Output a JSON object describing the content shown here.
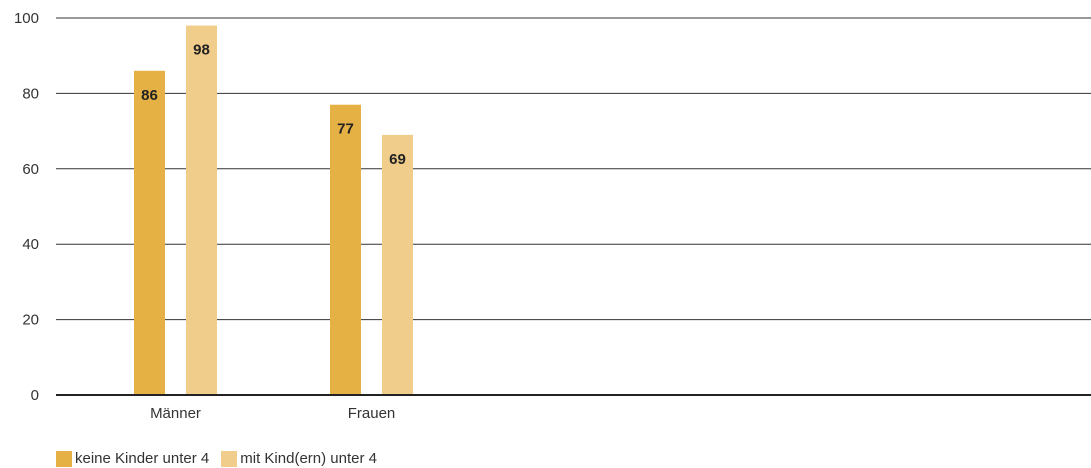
{
  "chart_data": {
    "type": "bar",
    "categories": [
      "Männer",
      "Frauen"
    ],
    "series": [
      {
        "name": "keine Kinder unter 4",
        "values": [
          86,
          77
        ],
        "color": "#e5b144"
      },
      {
        "name": "mit Kind(ern) unter 4",
        "values": [
          98,
          69
        ],
        "color": "#f0cd8b"
      }
    ],
    "value_labels": [
      [
        "86",
        "77"
      ],
      [
        "98",
        "69"
      ]
    ],
    "ylim": [
      0,
      100
    ],
    "yticks": [
      0,
      20,
      40,
      60,
      80,
      100
    ],
    "ytick_labels": [
      "0",
      "20",
      "40",
      "60",
      "80",
      "100"
    ],
    "grid": true,
    "legend_position": "bottom-left",
    "title": "",
    "xlabel": "",
    "ylabel": ""
  }
}
